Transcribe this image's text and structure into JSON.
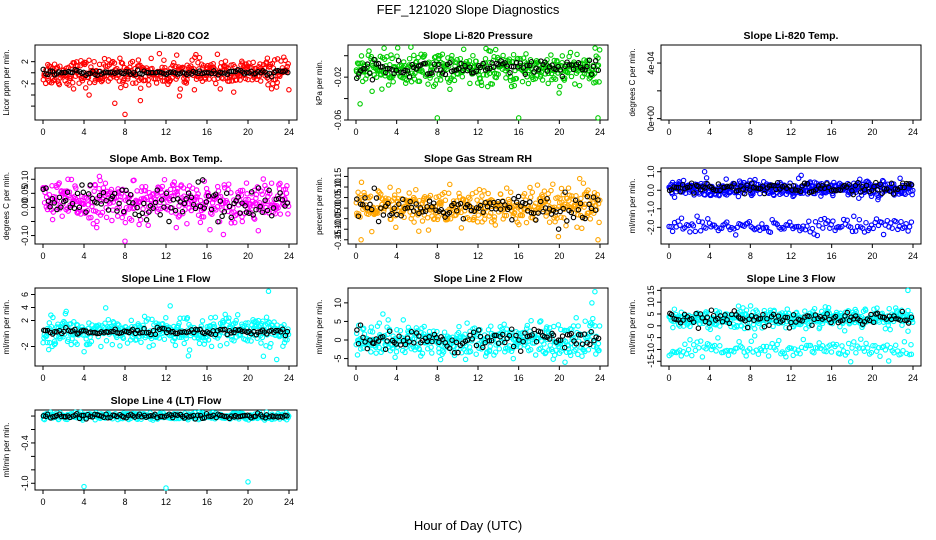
{
  "title": "FEF_121020  Slope Diagnostics",
  "xlabel": "Hour of Day (UTC)",
  "chart_data": [
    {
      "type": "scatter",
      "title": "Slope Li-820 CO2",
      "ylabel": "Licor ppm per min.",
      "xlim": [
        0,
        24
      ],
      "ylim": [
        -8.5,
        5
      ],
      "xticks": [
        0,
        4,
        8,
        12,
        16,
        20,
        24
      ],
      "yticks": [
        -6,
        -4,
        -2,
        0,
        2
      ],
      "yticklabels": [
        "",
        "",
        "-2",
        "",
        "2"
      ],
      "center": 0,
      "spread": 1.2,
      "color": "#ff0000",
      "black_spread": 0.25,
      "outliers": [
        [
          5,
          4.8
        ],
        [
          7,
          -5.5
        ],
        [
          8,
          -7.5
        ],
        [
          9.5,
          -5
        ],
        [
          4.5,
          -4
        ]
      ]
    },
    {
      "type": "scatter",
      "title": "Slope Li-820 Pressure",
      "ylabel": "kPa per min.",
      "xlim": [
        0,
        24
      ],
      "ylim": [
        -0.06,
        0.01
      ],
      "xticks": [
        0,
        4,
        8,
        12,
        16,
        20,
        24
      ],
      "yticks": [
        -0.06,
        -0.04,
        -0.02,
        0
      ],
      "yticklabels": [
        "-0.06",
        "",
        "-0.02",
        ""
      ],
      "center": -0.012,
      "spread": 0.008,
      "color": "#00cc00",
      "black_spread": 0.004,
      "outliers": [
        [
          8,
          -0.058
        ],
        [
          16,
          -0.058
        ],
        [
          23.8,
          -0.058
        ],
        [
          0.4,
          -0.045
        ]
      ]
    },
    {
      "type": "scatter",
      "title": "Slope Li-820 Temp.",
      "ylabel": "degrees C per min.",
      "xlim": [
        0,
        24
      ],
      "ylim": [
        -1e-05,
        0.00053
      ],
      "xticks": [
        0,
        4,
        8,
        12,
        16,
        20,
        24
      ],
      "yticks": [
        0,
        0.0002,
        0.0004
      ],
      "yticklabels": [
        "0e+00",
        "",
        "4e-04"
      ],
      "center": 0,
      "spread": 0,
      "color": "#ff00ff",
      "black_spread": 0,
      "outliers": [
        [
          2,
          0.00052
        ]
      ],
      "flat": true
    },
    {
      "type": "scatter",
      "title": "Slope Amb. Box Temp.",
      "ylabel": "degrees C per min.",
      "xlim": [
        0,
        24
      ],
      "ylim": [
        -0.13,
        0.14
      ],
      "xticks": [
        0,
        4,
        8,
        12,
        16,
        20,
        24
      ],
      "yticks": [
        -0.1,
        -0.05,
        0,
        0.05,
        0.1
      ],
      "yticklabels": [
        "-0.10",
        "",
        "0.00",
        "0.05",
        "0.10"
      ],
      "center": 0.02,
      "spread": 0.035,
      "color": "#ff00ff",
      "black_spread": 0.03,
      "outliers": [
        [
          8,
          -0.12
        ],
        [
          5.5,
          0.11
        ]
      ]
    },
    {
      "type": "scatter",
      "title": "Slope Gas Stream RH",
      "ylabel": "percent per min.",
      "xlim": [
        0,
        24
      ],
      "ylim": [
        -0.17,
        0.19
      ],
      "xticks": [
        0,
        4,
        8,
        12,
        16,
        20,
        24
      ],
      "yticks": [
        -0.15,
        -0.1,
        -0.05,
        0,
        0.05,
        0.1,
        0.15
      ],
      "yticklabels": [
        "-0.15",
        "-0.10",
        "-0.05",
        "0.00",
        "0.05",
        "0.10",
        "0.15"
      ],
      "center": 0,
      "spread": 0.045,
      "color": "#ffa500",
      "black_spread": 0.03,
      "outliers": [
        [
          0.5,
          -0.15
        ],
        [
          23.8,
          -0.15
        ],
        [
          22,
          0.14
        ]
      ]
    },
    {
      "type": "scatter",
      "title": "Slope Sample Flow",
      "ylabel": "ml/min per min.",
      "xlim": [
        0,
        24
      ],
      "ylim": [
        -2.9,
        1.2
      ],
      "xticks": [
        0,
        4,
        8,
        12,
        16,
        20,
        24
      ],
      "yticks": [
        -2,
        -1,
        0,
        1
      ],
      "yticklabels": [
        "-2.0",
        "-1.0",
        "0.0",
        "1.0"
      ],
      "center": 0.1,
      "spread": 0.2,
      "color": "#0000ff",
      "black_spread": 0.15,
      "band2": [
        -1.9,
        0.2
      ],
      "outliers": [
        [
          3.5,
          1.0
        ],
        [
          13,
          0.8
        ]
      ]
    },
    {
      "type": "scatter",
      "title": "Slope Line 1 Flow",
      "ylabel": "ml/min per min.",
      "xlim": [
        0,
        24
      ],
      "ylim": [
        -5,
        7
      ],
      "xticks": [
        0,
        4,
        8,
        12,
        16,
        20,
        24
      ],
      "yticks": [
        -2,
        2,
        4,
        6
      ],
      "yticklabels": [
        "-2",
        "2",
        "4",
        "6"
      ],
      "center": 0.3,
      "spread": 1.1,
      "color": "#00ffff",
      "black_spread": 0.25,
      "outliers": [
        [
          22,
          6.5
        ],
        [
          21.5,
          -3.5
        ],
        [
          22.8,
          -4
        ]
      ]
    },
    {
      "type": "scatter",
      "title": "Slope Line 2 Flow",
      "ylabel": "ml/min per min.",
      "xlim": [
        0,
        24
      ],
      "ylim": [
        -7,
        14
      ],
      "xticks": [
        0,
        4,
        8,
        12,
        16,
        20,
        24
      ],
      "yticks": [
        -5,
        0,
        5,
        10
      ],
      "yticklabels": [
        "-5",
        "0",
        "5",
        "10"
      ],
      "center": 0,
      "spread": 2.2,
      "color": "#00ffff",
      "black_spread": 1.5,
      "outliers": [
        [
          23.5,
          13
        ],
        [
          23.2,
          10
        ],
        [
          23.8,
          -6.5
        ]
      ]
    },
    {
      "type": "scatter",
      "title": "Slope Line 3 Flow",
      "ylabel": "ml/min per min.",
      "xlim": [
        0,
        24
      ],
      "ylim": [
        -17,
        16
      ],
      "xticks": [
        0,
        4,
        8,
        12,
        16,
        20,
        24
      ],
      "yticks": [
        -15,
        -10,
        -5,
        0,
        5,
        10,
        15
      ],
      "yticklabels": [
        "-15",
        "-10",
        "-5",
        "0",
        "5",
        "10",
        "15"
      ],
      "center": 3,
      "spread": 1.8,
      "color": "#00ffff",
      "black_spread": 1.5,
      "band2": [
        -10,
        1.8
      ],
      "outliers": [
        [
          23.5,
          15
        ],
        [
          23.8,
          -8
        ]
      ]
    },
    {
      "type": "scatter",
      "title": "Slope Line 4 (LT) Flow",
      "ylabel": "ml/min per min.",
      "xlim": [
        0,
        24
      ],
      "ylim": [
        -1.1,
        0.09
      ],
      "xticks": [
        0,
        4,
        8,
        12,
        16,
        20,
        24
      ],
      "yticks": [
        -1,
        -0.8,
        -0.6,
        -0.4,
        -0.2,
        0
      ],
      "yticklabels": [
        "-1.0",
        "",
        "",
        "-0.4",
        "",
        ""
      ],
      "center": 0,
      "spread": 0.025,
      "color": "#00ffff",
      "black_spread": 0.02,
      "outliers": [
        [
          4,
          -1.05
        ],
        [
          12,
          -1.07
        ],
        [
          20,
          -0.98
        ]
      ]
    }
  ]
}
